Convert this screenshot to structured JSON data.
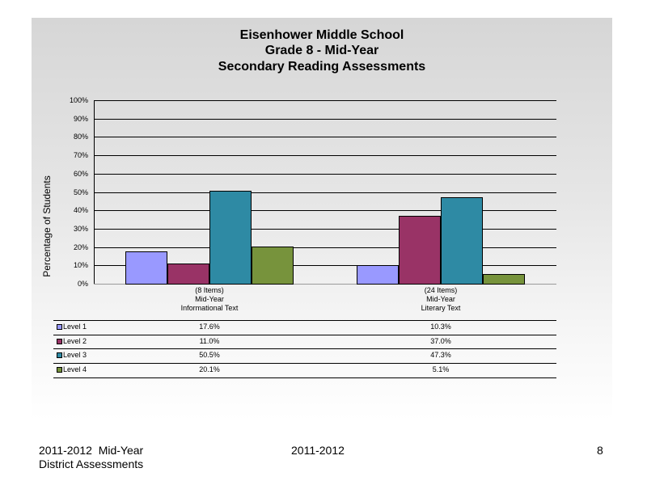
{
  "footer": {
    "left_line1": "2011-2012  Mid-Year",
    "left_line2": "District Assessments",
    "center": "2011-2012",
    "page_number": "8"
  },
  "chart_data": {
    "type": "bar",
    "title": [
      "Eisenhower Middle School",
      "Grade 8 - Mid-Year",
      "Secondary Reading Assessments"
    ],
    "ylabel": "Percentage of Students",
    "xlabel": "",
    "ylim": [
      0,
      100
    ],
    "yticks": [
      "0%",
      "10%",
      "20%",
      "30%",
      "40%",
      "50%",
      "60%",
      "70%",
      "80%",
      "90%",
      "100%"
    ],
    "grid": true,
    "categories": [
      [
        "(8 Items)",
        "Mid-Year",
        "Informational Text"
      ],
      [
        "(24 Items)",
        "Mid-Year",
        "Literary Text"
      ]
    ],
    "series": [
      {
        "name": "Level 1",
        "color": "#9999ff",
        "values": [
          17.6,
          10.3
        ],
        "labels": [
          "17.6%",
          "10.3%"
        ]
      },
      {
        "name": "Level 2",
        "color": "#993366",
        "values": [
          11.0,
          37.0
        ],
        "labels": [
          "11.0%",
          "37.0%"
        ]
      },
      {
        "name": "Level 3",
        "color": "#2e8aa4",
        "values": [
          50.5,
          47.3
        ],
        "labels": [
          "50.5%",
          "47.3%"
        ]
      },
      {
        "name": "Level 4",
        "color": "#77933c",
        "values": [
          20.1,
          5.1
        ],
        "labels": [
          "20.1%",
          "5.1%"
        ]
      }
    ]
  }
}
